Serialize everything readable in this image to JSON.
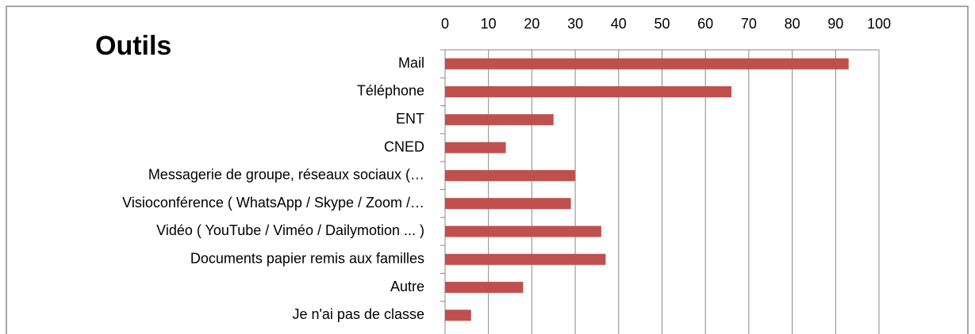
{
  "chart_data": {
    "type": "bar",
    "orientation": "horizontal",
    "title": "Outils",
    "categories": [
      "Mail",
      "Téléphone",
      "ENT",
      "CNED",
      "Messagerie de groupe, réseaux sociaux (…",
      "Visioconférence ( WhatsApp / Skype / Zoom /…",
      "Vidéo ( YouTube / Viméo / Dailymotion ... )",
      "Documents papier remis aux familles",
      "Autre",
      "Je n'ai pas de classe"
    ],
    "values": [
      93,
      66,
      25,
      14,
      30,
      29,
      36,
      37,
      18,
      6
    ],
    "color": "#c0504d",
    "xlim": [
      0,
      100
    ],
    "xticks": [
      0,
      10,
      20,
      30,
      40,
      50,
      60,
      70,
      80,
      90,
      100
    ],
    "grid": true
  }
}
